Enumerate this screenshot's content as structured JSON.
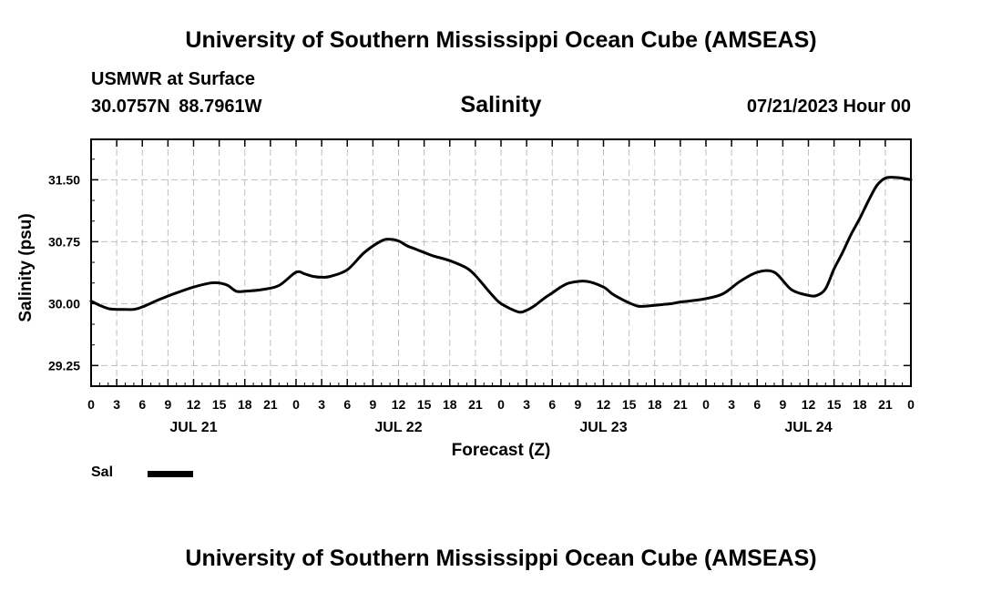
{
  "header": {
    "top_title": "University of Southern Mississippi Ocean Cube (AMSEAS)",
    "station": "USMWR at Surface",
    "coords": "30.0757N  88.7961W",
    "variable": "Salinity",
    "datetime": "07/21/2023 Hour 00",
    "bottom_title": "University of Southern Mississippi Ocean Cube (AMSEAS)"
  },
  "legend": {
    "label": "Sal"
  },
  "colors": {
    "line": "#000000",
    "grid": "#bfbfbf"
  },
  "chart_data": {
    "type": "line",
    "title": "Salinity",
    "xlabel": "Forecast (Z)",
    "ylabel": "Salinity (psu)",
    "x_unit": "hours from 07/21/2023 00Z",
    "xlim": [
      0,
      96
    ],
    "ylim": [
      29.0,
      31.99
    ],
    "yticks": [
      29.25,
      30.0,
      30.75,
      31.5
    ],
    "ytick_labels": [
      "29.25",
      "30.00",
      "30.75",
      "31.50"
    ],
    "xtick_hours": [
      0,
      3,
      6,
      9,
      12,
      15,
      18,
      21,
      24,
      27,
      30,
      33,
      36,
      39,
      42,
      45,
      48,
      51,
      54,
      57,
      60,
      63,
      66,
      69,
      72,
      75,
      78,
      81,
      84,
      87,
      90,
      93,
      96
    ],
    "xtick_labels": [
      "0",
      "3",
      "6",
      "9",
      "12",
      "15",
      "18",
      "21",
      "0",
      "3",
      "6",
      "9",
      "12",
      "15",
      "18",
      "21",
      "0",
      "3",
      "6",
      "9",
      "12",
      "15",
      "18",
      "21",
      "0",
      "3",
      "6",
      "9",
      "12",
      "15",
      "18",
      "21",
      "0"
    ],
    "day_labels": [
      {
        "hour": 12,
        "label": "JUL 21"
      },
      {
        "hour": 36,
        "label": "JUL 22"
      },
      {
        "hour": 60,
        "label": "JUL 23"
      },
      {
        "hour": 84,
        "label": "JUL 24"
      }
    ],
    "grid": true,
    "series": [
      {
        "name": "Sal",
        "x": [
          0,
          1,
          2,
          3,
          4,
          5,
          6,
          8,
          10,
          12,
          14,
          15,
          16,
          17,
          18,
          20,
          22,
          24,
          25,
          26,
          27,
          28,
          30,
          32,
          34,
          35,
          36,
          37,
          38,
          39,
          40,
          42,
          44,
          45,
          46,
          47,
          48,
          50,
          51,
          52,
          53,
          54,
          55,
          56,
          58,
          60,
          61,
          62,
          63,
          64,
          65,
          66,
          67,
          68,
          69,
          70,
          72,
          74,
          76,
          78,
          80,
          82,
          84,
          85,
          86,
          87,
          88,
          89,
          90,
          91,
          92,
          93,
          94,
          95,
          96
        ],
        "values": [
          30.03,
          29.98,
          29.94,
          29.93,
          29.93,
          29.93,
          29.96,
          30.05,
          30.13,
          30.2,
          30.25,
          30.25,
          30.22,
          30.15,
          30.15,
          30.17,
          30.22,
          30.38,
          30.36,
          30.33,
          30.32,
          30.33,
          30.41,
          30.62,
          30.76,
          30.78,
          30.76,
          30.7,
          30.66,
          30.62,
          30.58,
          30.52,
          30.43,
          30.34,
          30.22,
          30.1,
          30.0,
          29.9,
          29.92,
          29.98,
          30.06,
          30.13,
          30.2,
          30.25,
          30.27,
          30.2,
          30.12,
          30.06,
          30.01,
          29.97,
          29.97,
          29.98,
          29.99,
          30.0,
          30.02,
          30.03,
          30.06,
          30.12,
          30.27,
          30.38,
          30.38,
          30.17,
          30.1,
          30.1,
          30.18,
          30.42,
          30.62,
          30.84,
          31.03,
          31.24,
          31.43,
          31.52,
          31.53,
          31.52,
          31.5
        ]
      }
    ]
  }
}
